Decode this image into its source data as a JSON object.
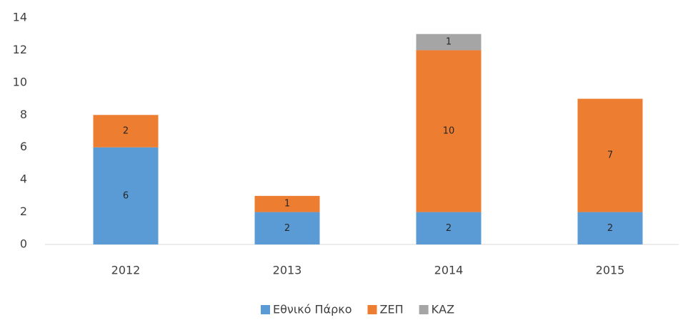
{
  "chart_data": {
    "type": "bar",
    "stacked": true,
    "categories": [
      "2012",
      "2013",
      "2014",
      "2015"
    ],
    "series": [
      {
        "name": "Εθνικό Πάρκο",
        "color": "#5b9bd5",
        "values": [
          6,
          2,
          2,
          2
        ]
      },
      {
        "name": "ΖΕΠ",
        "color": "#ed7d31",
        "values": [
          2,
          1,
          10,
          7
        ]
      },
      {
        "name": "ΚΑΖ",
        "color": "#a5a5a5",
        "values": [
          null,
          null,
          1,
          null
        ]
      }
    ],
    "ylim": [
      0,
      14
    ],
    "yticks": [
      0,
      2,
      4,
      6,
      8,
      10,
      12,
      14
    ],
    "grid": false,
    "legend": "bottom"
  }
}
